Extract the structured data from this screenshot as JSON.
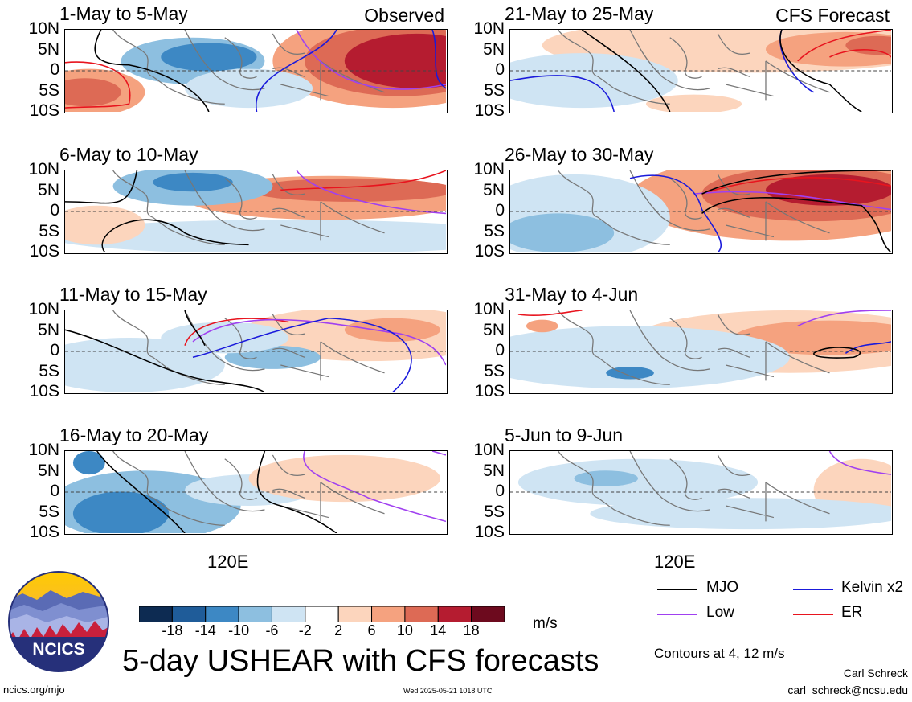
{
  "panels": [
    {
      "title": "1-May to 5-May",
      "tag": "Observed"
    },
    {
      "title": "6-May to 10-May",
      "tag": ""
    },
    {
      "title": "11-May to 15-May",
      "tag": ""
    },
    {
      "title": "16-May to 20-May",
      "tag": ""
    },
    {
      "title": "21-May to 25-May",
      "tag": "CFS Forecast"
    },
    {
      "title": "26-May to 30-May",
      "tag": ""
    },
    {
      "title": "31-May to 4-Jun",
      "tag": ""
    },
    {
      "title": "5-Jun to 9-Jun",
      "tag": ""
    }
  ],
  "lat_labels": [
    "10N",
    "5N",
    "0",
    "5S",
    "10S"
  ],
  "lon_label": "120E",
  "colorbar": {
    "ticks": [
      "-18",
      "-14",
      "-10",
      "-6",
      "-2",
      "2",
      "6",
      "10",
      "14",
      "18"
    ],
    "colors": [
      "#0d2b52",
      "#1f5c99",
      "#3d88c4",
      "#8dbfe0",
      "#cfe4f3",
      "#ffffff",
      "#fcd5bd",
      "#f5a27f",
      "#dd6a55",
      "#b51c30",
      "#6d0a1e"
    ],
    "units": "m/s"
  },
  "legend": {
    "mjo": "MJO",
    "mjo_color": "#000000",
    "kelvin": "Kelvin x2",
    "kelvin_color": "#1a1adb",
    "low": "Low",
    "low_color": "#a040f0",
    "er": "ER",
    "er_color": "#e8141e",
    "contours": "Contours at 4, 12 m/s"
  },
  "title": "5-day USHEAR with CFS forecasts",
  "logo_text": "NCICS",
  "footer": {
    "left": "ncics.org/mjo",
    "center": "Wed 2025-05-21 1018 UTC",
    "author": "Carl Schreck",
    "email": "carl_schreck@ncsu.edu"
  }
}
